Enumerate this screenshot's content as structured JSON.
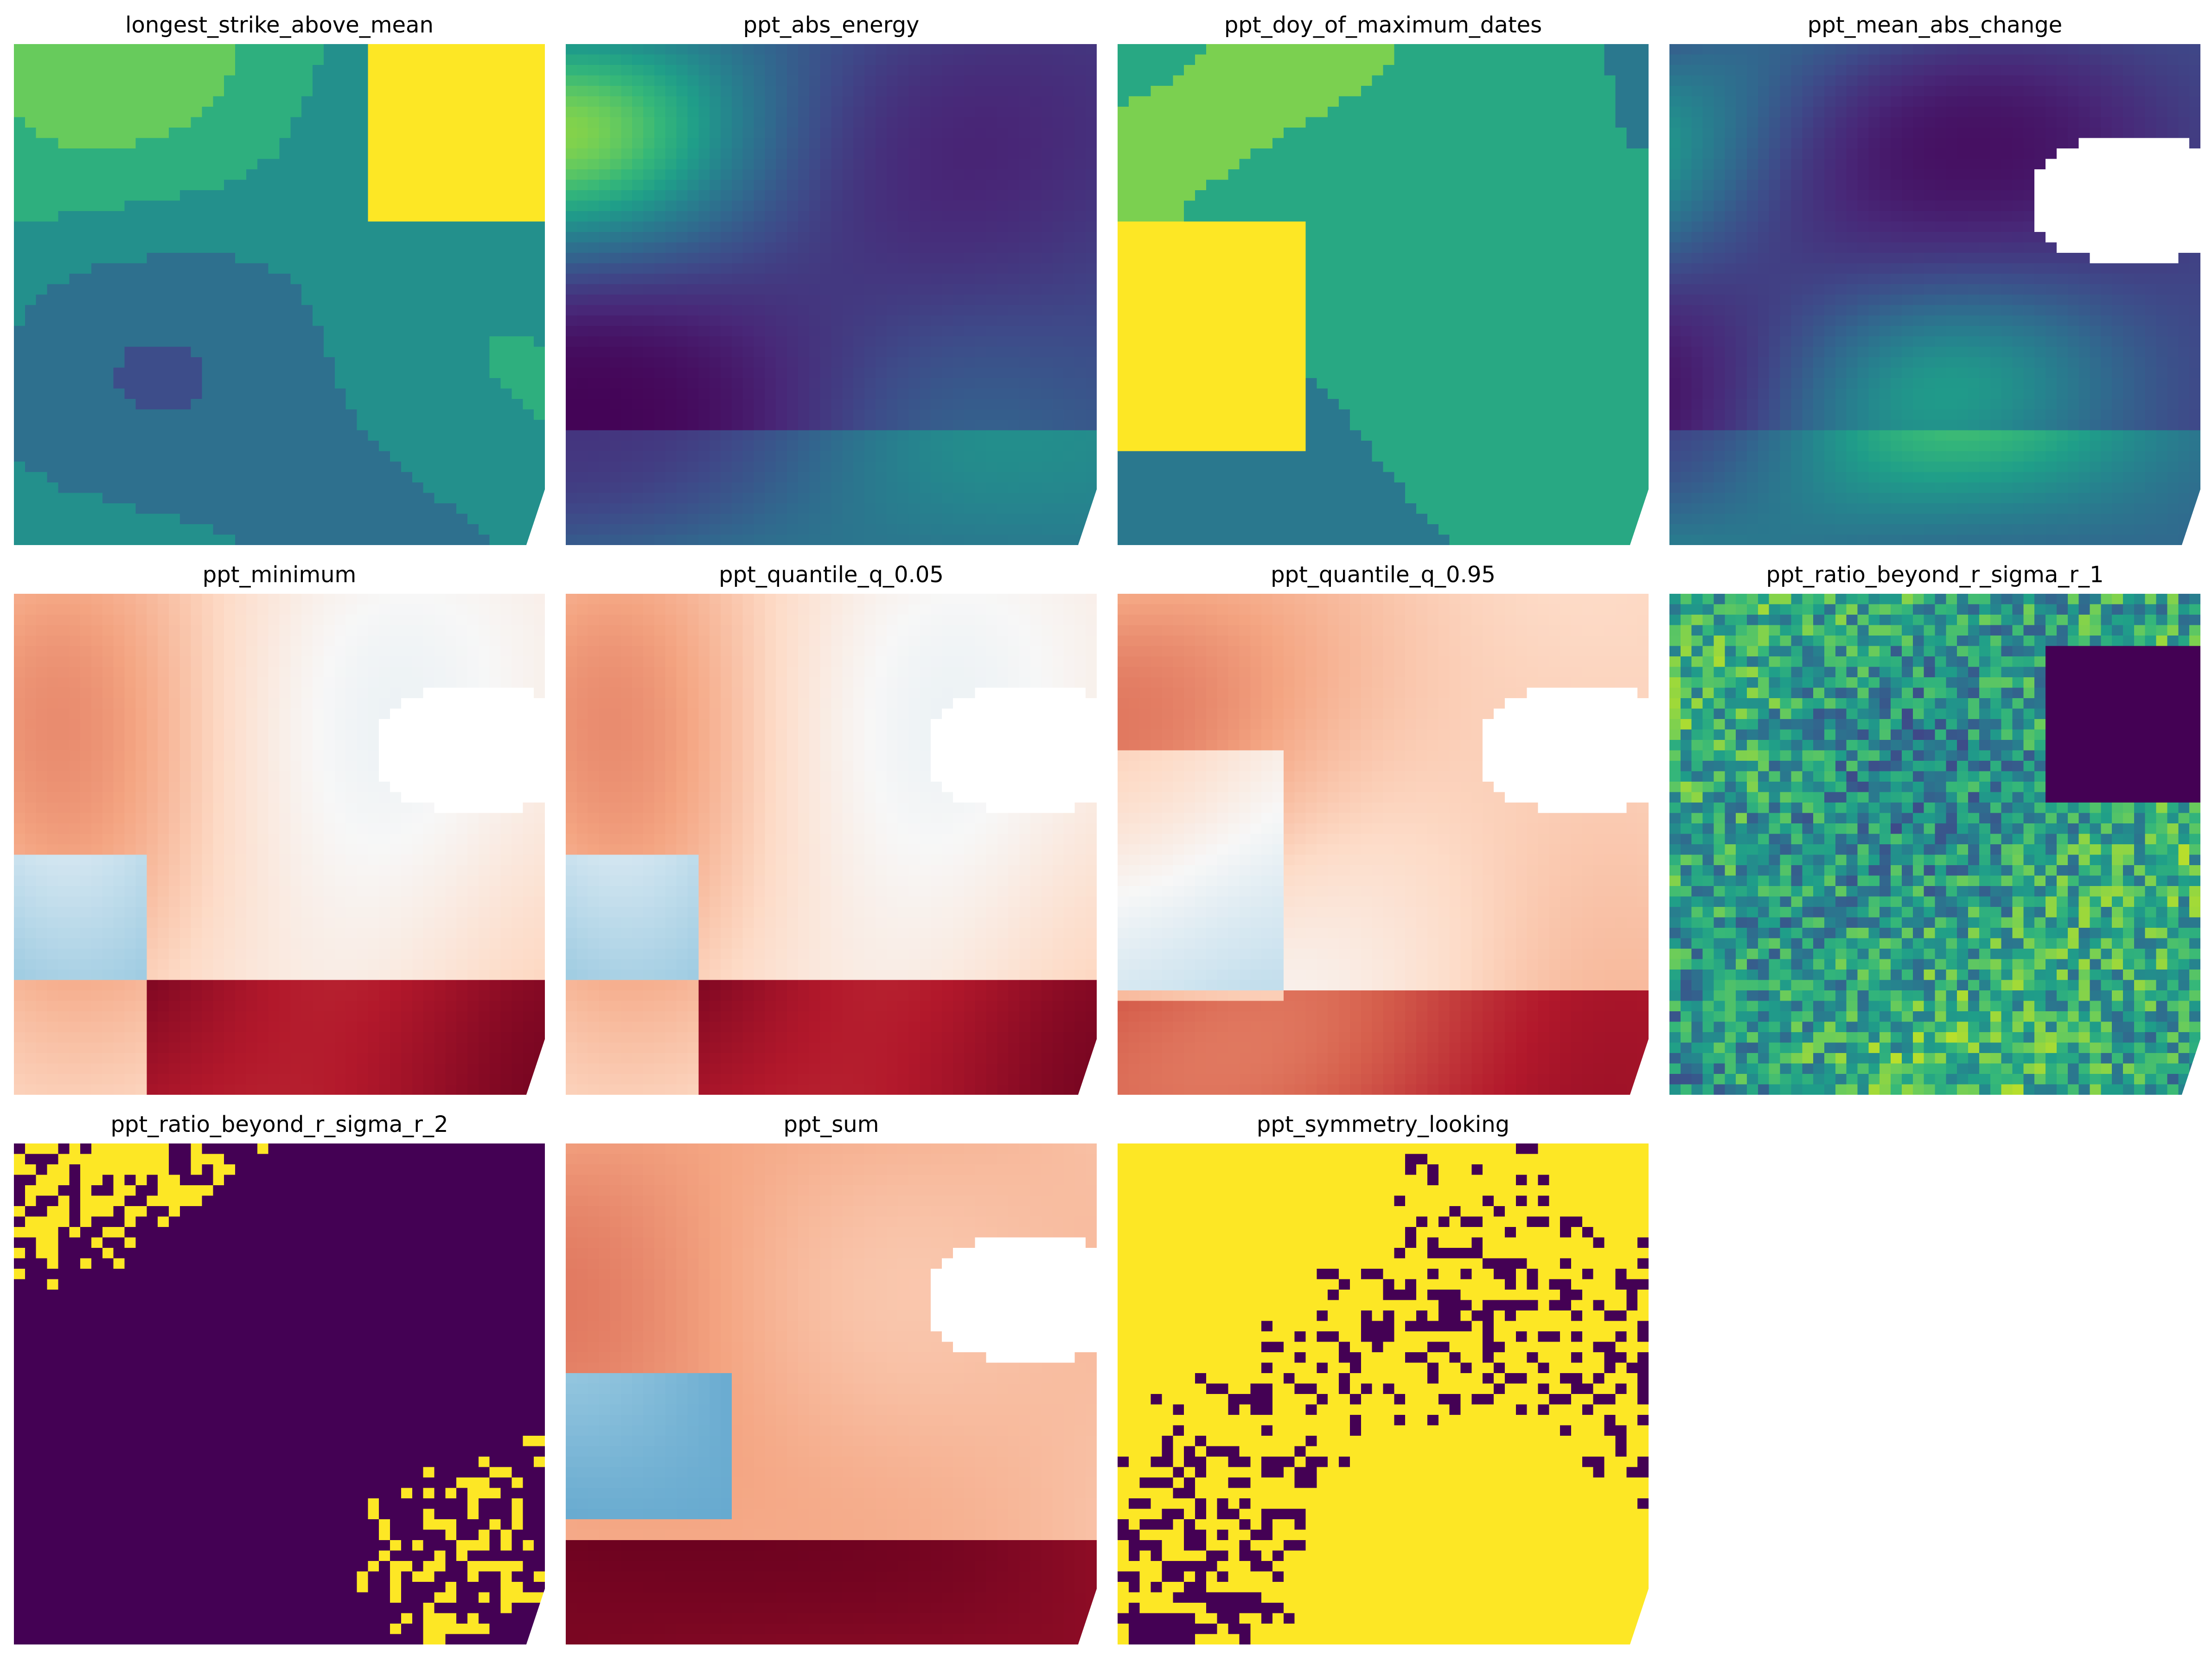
{
  "chart_data": [
    {
      "type": "heatmap",
      "title": "longest_strike_above_mean",
      "cmap": "viridis",
      "pattern": "patchy",
      "seed": 11,
      "masked_region": false
    },
    {
      "type": "heatmap",
      "title": "ppt_abs_energy",
      "cmap": "viridis",
      "pattern": "smooth-low",
      "seed": 23,
      "masked_region": false
    },
    {
      "type": "heatmap",
      "title": "ppt_doy_of_maximum_dates",
      "cmap": "viridis",
      "pattern": "zones",
      "seed": 37,
      "masked_region": false
    },
    {
      "type": "heatmap",
      "title": "ppt_mean_abs_change",
      "cmap": "viridis",
      "pattern": "smooth-low",
      "seed": 41,
      "masked_region": true
    },
    {
      "type": "heatmap",
      "title": "ppt_minimum",
      "cmap": "RdBu_r",
      "pattern": "diverging",
      "seed": 53,
      "masked_region": true
    },
    {
      "type": "heatmap",
      "title": "ppt_quantile_q_0.05",
      "cmap": "RdBu_r",
      "pattern": "diverging",
      "seed": 53,
      "masked_region": true
    },
    {
      "type": "heatmap",
      "title": "ppt_quantile_q_0.95",
      "cmap": "RdBu_r",
      "pattern": "warm",
      "seed": 67,
      "masked_region": true
    },
    {
      "type": "heatmap",
      "title": "ppt_ratio_beyond_r_sigma_r_1",
      "cmap": "viridis",
      "pattern": "noisy",
      "seed": 71,
      "masked_region": false
    },
    {
      "type": "heatmap",
      "title": "ppt_ratio_beyond_r_sigma_r_2",
      "cmap": "viridis",
      "pattern": "binary-sparse",
      "seed": 83,
      "masked_region": false
    },
    {
      "type": "heatmap",
      "title": "ppt_sum",
      "cmap": "RdBu_r",
      "pattern": "warm-south",
      "seed": 97,
      "masked_region": true
    },
    {
      "type": "heatmap",
      "title": "ppt_symmetry_looking",
      "cmap": "viridis",
      "pattern": "binary-dense",
      "seed": 101,
      "masked_region": false
    }
  ]
}
